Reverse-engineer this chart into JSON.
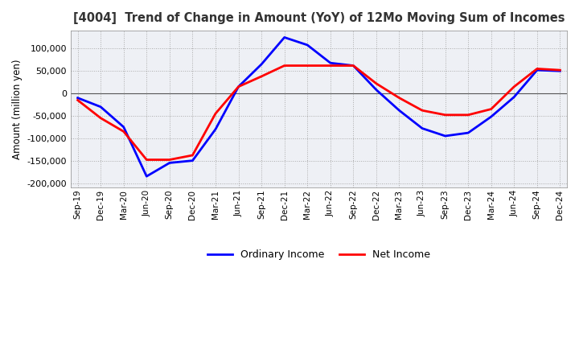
{
  "title": "[4004]  Trend of Change in Amount (YoY) of 12Mo Moving Sum of Incomes",
  "ylabel": "Amount (million yen)",
  "ylim": [
    -210000,
    140000
  ],
  "yticks": [
    -200000,
    -150000,
    -100000,
    -50000,
    0,
    50000,
    100000
  ],
  "x_labels": [
    "Sep-19",
    "Dec-19",
    "Mar-20",
    "Jun-20",
    "Sep-20",
    "Dec-20",
    "Mar-21",
    "Jun-21",
    "Sep-21",
    "Dec-21",
    "Mar-22",
    "Jun-22",
    "Sep-22",
    "Dec-22",
    "Mar-23",
    "Jun-23",
    "Sep-23",
    "Dec-23",
    "Mar-24",
    "Jun-24",
    "Sep-24",
    "Dec-24"
  ],
  "ordinary_income": [
    -10000,
    -30000,
    -75000,
    -185000,
    -155000,
    -150000,
    -80000,
    15000,
    65000,
    125000,
    108000,
    68000,
    62000,
    8000,
    -38000,
    -78000,
    -95000,
    -88000,
    -52000,
    -8000,
    52000,
    50000
  ],
  "net_income": [
    -15000,
    -55000,
    -85000,
    -148000,
    -148000,
    -138000,
    -45000,
    15000,
    38000,
    62000,
    62000,
    62000,
    62000,
    22000,
    -10000,
    -38000,
    -48000,
    -48000,
    -35000,
    15000,
    55000,
    52000
  ],
  "ordinary_color": "#0000ff",
  "net_color": "#ff0000",
  "line_width": 2.0,
  "background_color": "#ffffff",
  "plot_bg_color": "#eef0f5",
  "grid_color": "#aaaaaa",
  "legend_labels": [
    "Ordinary Income",
    "Net Income"
  ]
}
